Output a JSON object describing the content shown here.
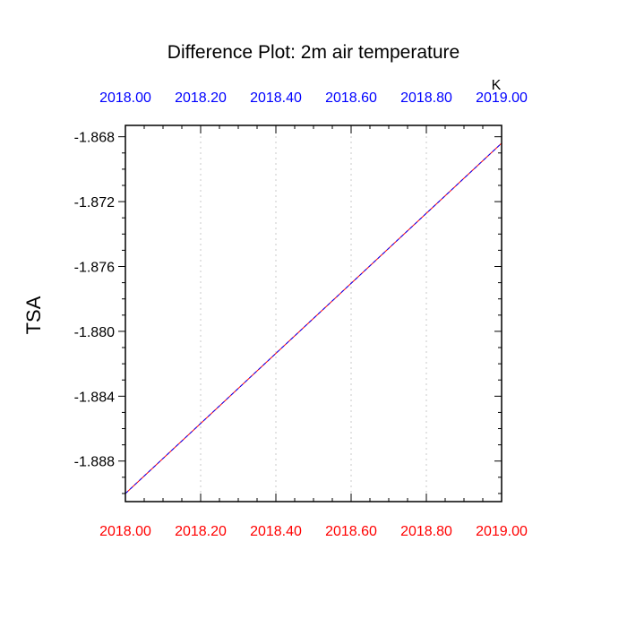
{
  "chart_data": {
    "type": "line",
    "title": "Difference Plot: 2m air temperature",
    "ylabel": "TSA",
    "units_label": "K",
    "xlim": [
      2018.0,
      2019.0
    ],
    "ylim": [
      -1.8905,
      -1.8673
    ],
    "x_ticks": [
      "2018.00",
      "2018.20",
      "2018.40",
      "2018.60",
      "2018.80",
      "2019.00"
    ],
    "x_tick_values": [
      2018.0,
      2018.2,
      2018.4,
      2018.6,
      2018.8,
      2019.0
    ],
    "y_ticks": [
      "-1.868",
      "-1.872",
      "-1.876",
      "-1.880",
      "-1.884",
      "-1.888"
    ],
    "y_tick_values": [
      -1.868,
      -1.872,
      -1.876,
      -1.88,
      -1.884,
      -1.888
    ],
    "grid": {
      "vertical": true,
      "horizontal": false
    },
    "top_axis_color": "#0000ff",
    "bottom_axis_color": "#ff0000",
    "series": [
      {
        "color": "#ff0000",
        "style": "solid",
        "x": [
          2018.0,
          2019.0
        ],
        "y": [
          -1.89,
          -1.8684
        ]
      },
      {
        "color": "#0000ff",
        "style": "dashed",
        "x": [
          2018.0,
          2019.0
        ],
        "y": [
          -1.89,
          -1.8684
        ]
      }
    ]
  }
}
